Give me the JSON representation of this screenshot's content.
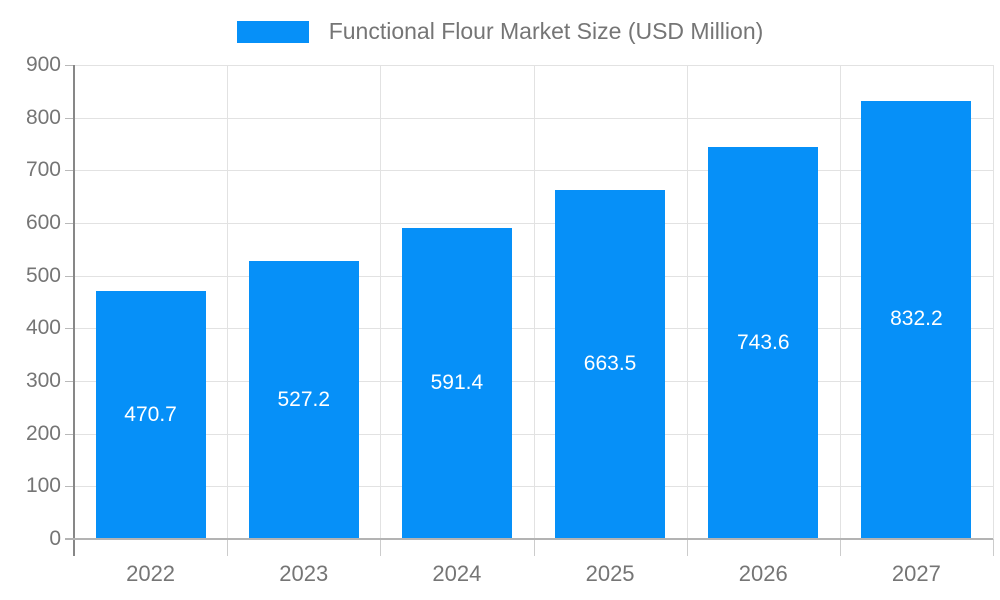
{
  "chart_data": {
    "type": "bar",
    "title": "Functional Flour Market Size (USD Million)",
    "legend_position": "top",
    "series_name": "Functional Flour Market Size (USD Million)",
    "categories": [
      "2022",
      "2023",
      "2024",
      "2025",
      "2026",
      "2027"
    ],
    "values": [
      470.7,
      527.2,
      591.4,
      663.5,
      743.6,
      832.2
    ],
    "value_labels": [
      "470.7",
      "527.2",
      "591.4",
      "663.5",
      "743.6",
      "832.2"
    ],
    "xlabel": "",
    "ylabel": "",
    "ylim": [
      0,
      900
    ],
    "yticks": [
      0,
      100,
      200,
      300,
      400,
      500,
      600,
      700,
      800,
      900
    ],
    "grid": true,
    "colors": {
      "bar": "#0690f8",
      "bar_label_text": "#ffffff",
      "axis_text": "#757575",
      "gridline": "#e2e2e2",
      "axis_line": "#878787",
      "baseline": "#b3b3b3",
      "background": "#ffffff"
    }
  }
}
